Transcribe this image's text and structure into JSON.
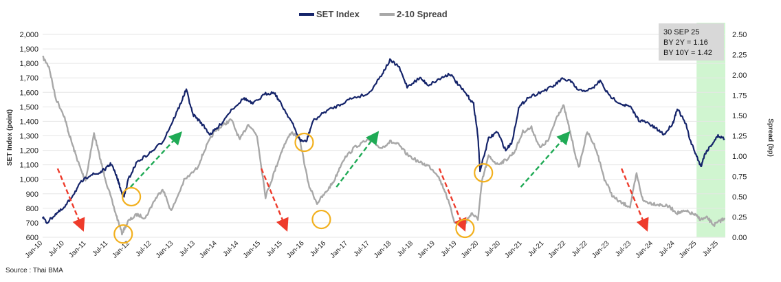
{
  "chart_data": {
    "type": "line",
    "title": "",
    "legend": [
      {
        "name": "SET Index",
        "color": "#15246a"
      },
      {
        "name": "2-10 Spread",
        "color": "#a8a8a8"
      }
    ],
    "ylabel_left": "SET Index (point)",
    "ylabel_right": "Spread (bp)",
    "ylim_left": [
      600,
      2000
    ],
    "ylim_right": [
      0,
      2.5
    ],
    "yticks_left": [
      "600",
      "700",
      "800",
      "900",
      "1,000",
      "1,100",
      "1,200",
      "1,300",
      "1,400",
      "1,500",
      "1,600",
      "1,700",
      "1,800",
      "1,900",
      "2,000"
    ],
    "yticks_right": [
      "0.00",
      "0.25",
      "0.50",
      "0.75",
      "1.00",
      "1.25",
      "1.50",
      "1.75",
      "2.00",
      "2.25",
      "2.50"
    ],
    "x_range": [
      2010.0,
      2025.92
    ],
    "xticks": [
      "Jan-10",
      "Jul-10",
      "Jan-11",
      "Jul-11",
      "Jan-12",
      "Jul-12",
      "Jan-13",
      "Jul-13",
      "Jan-14",
      "Jul-14",
      "Jan-15",
      "Jul-15",
      "Jan-16",
      "Jul-16",
      "Jan-17",
      "Jul-17",
      "Jan-18",
      "Jul-18",
      "Jan-19",
      "Jul-19",
      "Jan-20",
      "Jul-20",
      "Jan-21",
      "Jul-21",
      "Jan-22",
      "Jul-22",
      "Jan-23",
      "Jul-23",
      "Jan-24",
      "Jul-24",
      "Jan-25",
      "Jul-25"
    ],
    "series": [
      {
        "name": "SET Index",
        "color": "#15246a",
        "axis": "left",
        "points": [
          [
            2010.0,
            740
          ],
          [
            2010.1,
            700
          ],
          [
            2010.3,
            760
          ],
          [
            2010.5,
            800
          ],
          [
            2010.7,
            890
          ],
          [
            2010.9,
            980
          ],
          [
            2011.1,
            1030
          ],
          [
            2011.3,
            1040
          ],
          [
            2011.5,
            1080
          ],
          [
            2011.6,
            1110
          ],
          [
            2011.75,
            1000
          ],
          [
            2011.83,
            920
          ],
          [
            2011.9,
            880
          ],
          [
            2012.0,
            1000
          ],
          [
            2012.2,
            1120
          ],
          [
            2012.5,
            1180
          ],
          [
            2012.8,
            1260
          ],
          [
            2013.0,
            1380
          ],
          [
            2013.2,
            1510
          ],
          [
            2013.35,
            1620
          ],
          [
            2013.5,
            1450
          ],
          [
            2013.7,
            1390
          ],
          [
            2013.9,
            1310
          ],
          [
            2014.1,
            1360
          ],
          [
            2014.4,
            1480
          ],
          [
            2014.7,
            1560
          ],
          [
            2014.9,
            1520
          ],
          [
            2015.2,
            1590
          ],
          [
            2015.4,
            1600
          ],
          [
            2015.6,
            1500
          ],
          [
            2015.8,
            1400
          ],
          [
            2016.0,
            1270
          ],
          [
            2016.15,
            1260
          ],
          [
            2016.3,
            1400
          ],
          [
            2016.6,
            1470
          ],
          [
            2016.9,
            1510
          ],
          [
            2017.2,
            1560
          ],
          [
            2017.6,
            1590
          ],
          [
            2017.9,
            1720
          ],
          [
            2018.1,
            1820
          ],
          [
            2018.3,
            1780
          ],
          [
            2018.5,
            1640
          ],
          [
            2018.8,
            1700
          ],
          [
            2019.0,
            1650
          ],
          [
            2019.3,
            1700
          ],
          [
            2019.5,
            1730
          ],
          [
            2019.7,
            1650
          ],
          [
            2019.9,
            1580
          ],
          [
            2020.05,
            1520
          ],
          [
            2020.15,
            1300
          ],
          [
            2020.2,
            1060
          ],
          [
            2020.4,
            1280
          ],
          [
            2020.6,
            1330
          ],
          [
            2020.8,
            1200
          ],
          [
            2020.95,
            1260
          ],
          [
            2021.1,
            1490
          ],
          [
            2021.3,
            1560
          ],
          [
            2021.6,
            1600
          ],
          [
            2021.9,
            1640
          ],
          [
            2022.1,
            1690
          ],
          [
            2022.3,
            1680
          ],
          [
            2022.5,
            1610
          ],
          [
            2022.8,
            1620
          ],
          [
            2023.0,
            1680
          ],
          [
            2023.2,
            1580
          ],
          [
            2023.5,
            1520
          ],
          [
            2023.7,
            1500
          ],
          [
            2023.9,
            1410
          ],
          [
            2024.1,
            1390
          ],
          [
            2024.3,
            1350
          ],
          [
            2024.5,
            1310
          ],
          [
            2024.7,
            1390
          ],
          [
            2024.8,
            1490
          ],
          [
            2025.0,
            1380
          ],
          [
            2025.1,
            1270
          ],
          [
            2025.25,
            1160
          ],
          [
            2025.35,
            1090
          ],
          [
            2025.45,
            1180
          ],
          [
            2025.6,
            1240
          ],
          [
            2025.75,
            1300
          ],
          [
            2025.9,
            1280
          ]
        ]
      },
      {
        "name": "2-10 Spread",
        "color": "#a8a8a8",
        "axis": "right",
        "points": [
          [
            2010.0,
            2.22
          ],
          [
            2010.15,
            2.1
          ],
          [
            2010.3,
            1.72
          ],
          [
            2010.5,
            1.5
          ],
          [
            2010.6,
            1.3
          ],
          [
            2010.75,
            1.05
          ],
          [
            2010.9,
            0.82
          ],
          [
            2011.0,
            0.7
          ],
          [
            2011.2,
            1.28
          ],
          [
            2011.35,
            0.95
          ],
          [
            2011.5,
            0.65
          ],
          [
            2011.7,
            0.3
          ],
          [
            2011.85,
            0.05
          ],
          [
            2012.0,
            0.2
          ],
          [
            2012.2,
            0.28
          ],
          [
            2012.4,
            0.24
          ],
          [
            2012.6,
            0.45
          ],
          [
            2012.8,
            0.6
          ],
          [
            2013.0,
            0.32
          ],
          [
            2013.3,
            0.7
          ],
          [
            2013.6,
            0.85
          ],
          [
            2013.8,
            1.1
          ],
          [
            2014.0,
            1.3
          ],
          [
            2014.2,
            1.38
          ],
          [
            2014.4,
            1.45
          ],
          [
            2014.6,
            1.2
          ],
          [
            2014.8,
            1.4
          ],
          [
            2015.0,
            1.25
          ],
          [
            2015.2,
            0.5
          ],
          [
            2015.4,
            0.8
          ],
          [
            2015.6,
            1.1
          ],
          [
            2015.8,
            1.3
          ],
          [
            2016.0,
            1.2
          ],
          [
            2016.2,
            0.65
          ],
          [
            2016.4,
            0.42
          ],
          [
            2016.6,
            0.55
          ],
          [
            2016.8,
            0.7
          ],
          [
            2017.0,
            0.95
          ],
          [
            2017.3,
            1.12
          ],
          [
            2017.6,
            1.2
          ],
          [
            2017.9,
            1.1
          ],
          [
            2018.1,
            1.18
          ],
          [
            2018.3,
            1.14
          ],
          [
            2018.5,
            1.02
          ],
          [
            2018.8,
            0.92
          ],
          [
            2019.0,
            0.88
          ],
          [
            2019.2,
            0.78
          ],
          [
            2019.4,
            0.55
          ],
          [
            2019.6,
            0.2
          ],
          [
            2019.8,
            0.12
          ],
          [
            2020.0,
            0.3
          ],
          [
            2020.15,
            0.22
          ],
          [
            2020.25,
            0.7
          ],
          [
            2020.4,
            1.0
          ],
          [
            2020.6,
            0.9
          ],
          [
            2020.8,
            0.95
          ],
          [
            2021.0,
            1.05
          ],
          [
            2021.2,
            1.3
          ],
          [
            2021.4,
            1.35
          ],
          [
            2021.6,
            1.1
          ],
          [
            2021.8,
            1.2
          ],
          [
            2022.0,
            1.5
          ],
          [
            2022.15,
            1.62
          ],
          [
            2022.3,
            1.3
          ],
          [
            2022.5,
            0.85
          ],
          [
            2022.7,
            1.3
          ],
          [
            2022.9,
            1.1
          ],
          [
            2023.1,
            0.72
          ],
          [
            2023.3,
            0.5
          ],
          [
            2023.5,
            0.42
          ],
          [
            2023.7,
            0.38
          ],
          [
            2023.85,
            0.78
          ],
          [
            2024.0,
            0.45
          ],
          [
            2024.2,
            0.42
          ],
          [
            2024.4,
            0.4
          ],
          [
            2024.6,
            0.38
          ],
          [
            2024.8,
            0.3
          ],
          [
            2025.0,
            0.32
          ],
          [
            2025.2,
            0.28
          ],
          [
            2025.35,
            0.22
          ],
          [
            2025.5,
            0.24
          ],
          [
            2025.65,
            0.15
          ],
          [
            2025.8,
            0.2
          ],
          [
            2025.9,
            0.24
          ]
        ]
      }
    ],
    "highlight_band": {
      "x_start": 2025.25,
      "x_end": 2025.92,
      "color": "#c8f3c8"
    },
    "annotation_lines": [
      "30 SEP 25",
      "BY 2Y = 1.16",
      "BY 10Y = 1.42"
    ],
    "arrows_down": [
      [
        2010.35,
        2010.9
      ],
      [
        2015.1,
        2015.65
      ],
      [
        2019.25,
        2019.8
      ],
      [
        2023.5,
        2024.05
      ]
    ],
    "arrows_up": [
      [
        2012.05,
        2013.15
      ],
      [
        2016.85,
        2017.75
      ],
      [
        2021.15,
        2022.2
      ]
    ],
    "circles": [
      [
        2011.88,
        "right",
        0.04
      ],
      [
        2012.07,
        "left",
        880
      ],
      [
        2016.1,
        "left",
        1255
      ],
      [
        2016.5,
        "right",
        0.22
      ],
      [
        2019.85,
        "right",
        0.11
      ],
      [
        2020.28,
        "left",
        1045
      ]
    ],
    "source": "Source : Thai BMA"
  }
}
